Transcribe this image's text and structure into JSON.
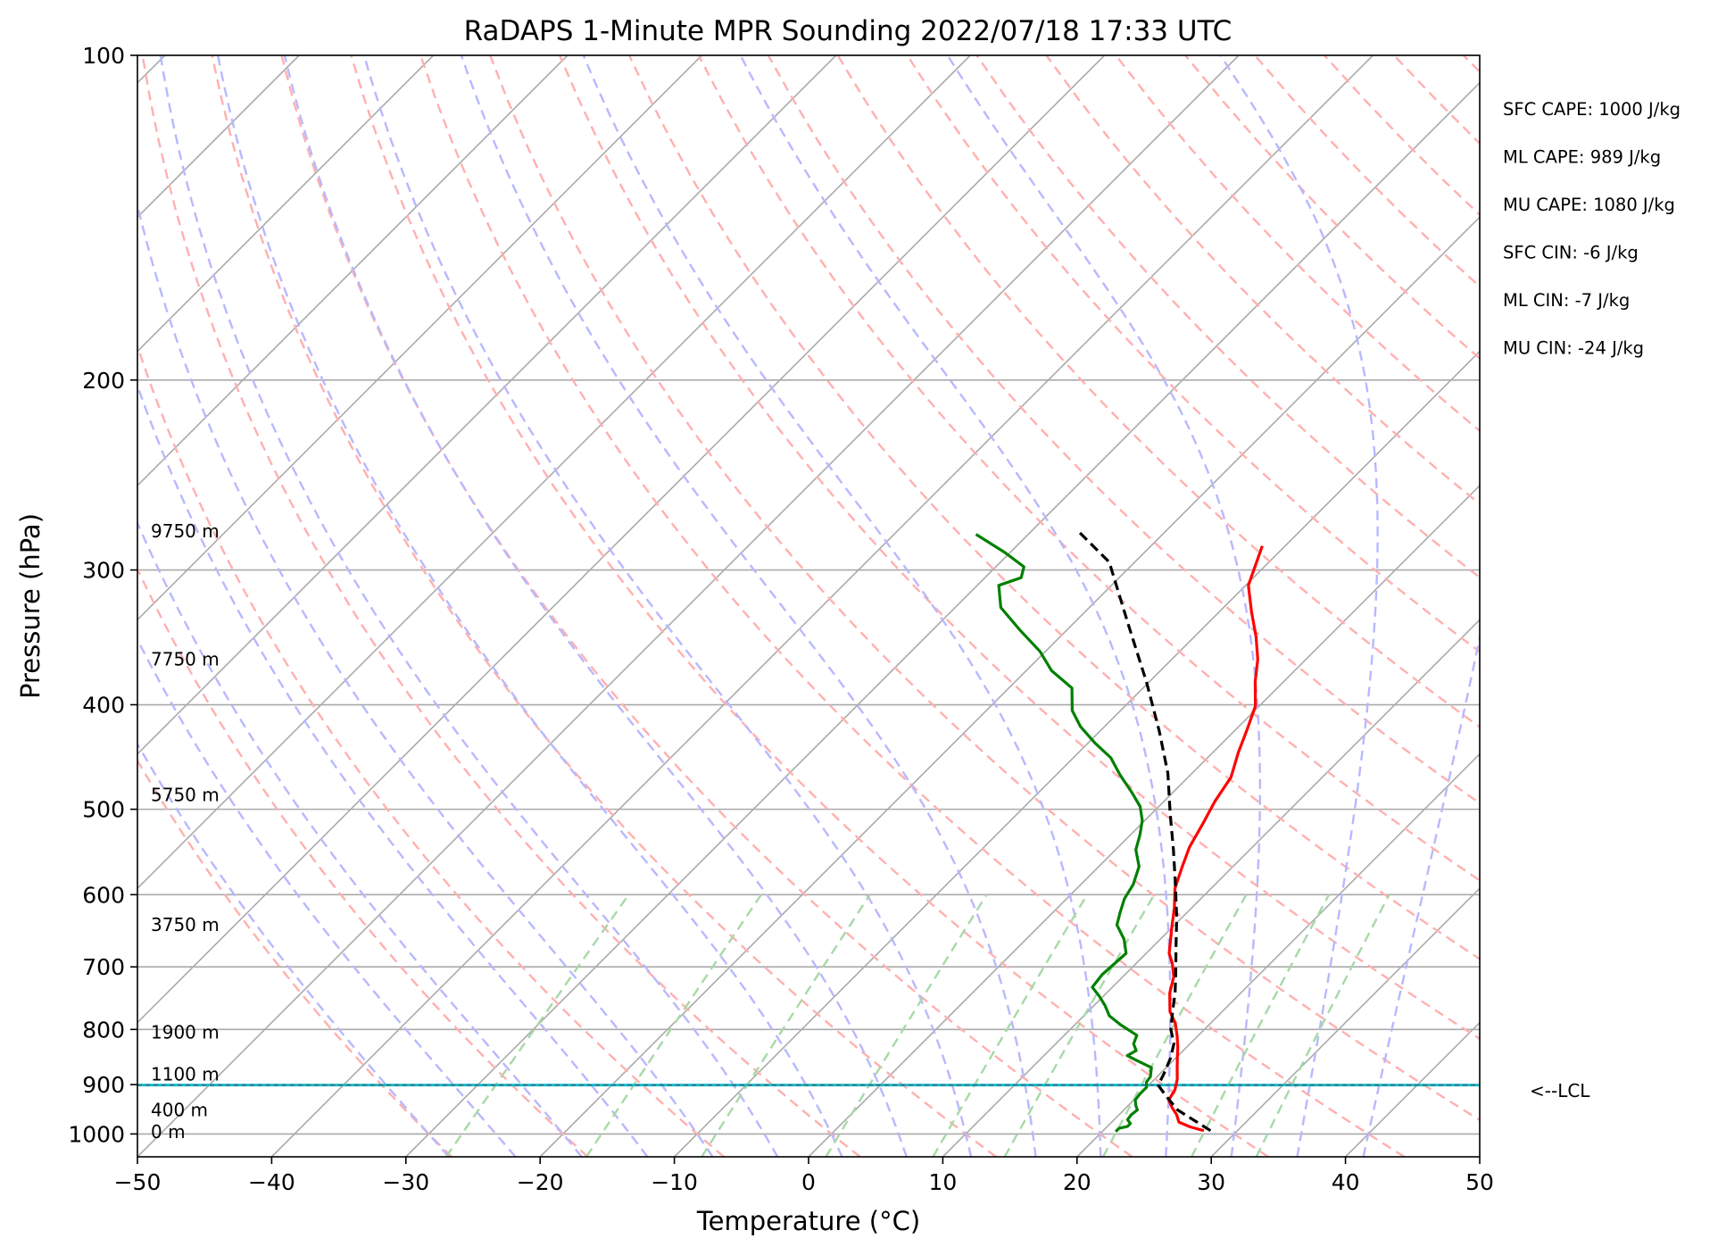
{
  "chart_data": {
    "type": "line",
    "title": "RaDAPS 1-Minute MPR Sounding 2022/07/18 17:33 UTC",
    "xlabel": "Temperature (°C)",
    "ylabel": "Pressure (hPa)",
    "xlim": [
      -50,
      50
    ],
    "ylim": [
      1050,
      100
    ],
    "y_scale": "log",
    "x_ticks": [
      "−50",
      "−40",
      "−30",
      "−20",
      "−10",
      "0",
      "10",
      "20",
      "30",
      "40",
      "50"
    ],
    "x_tick_values": [
      -50,
      -40,
      -30,
      -20,
      -10,
      0,
      10,
      20,
      30,
      40,
      50
    ],
    "y_ticks": [
      "100",
      "200",
      "300",
      "400",
      "500",
      "600",
      "700",
      "800",
      "900",
      "1000"
    ],
    "y_tick_values": [
      100,
      200,
      300,
      400,
      500,
      600,
      700,
      800,
      900,
      1000
    ],
    "grid": true,
    "series": [
      {
        "role": "temperature",
        "color": "#ff0000",
        "points": [
          [
            27.5,
            993
          ],
          [
            26.2,
            985
          ],
          [
            25.0,
            975
          ],
          [
            24.3,
            960
          ],
          [
            23.4,
            945
          ],
          [
            22.6,
            930
          ],
          [
            22.3,
            910
          ],
          [
            21.7,
            890
          ],
          [
            20.9,
            870
          ],
          [
            20.1,
            850
          ],
          [
            19.3,
            830
          ],
          [
            18.4,
            810
          ],
          [
            17.4,
            790
          ],
          [
            16.1,
            770
          ],
          [
            14.7,
            740
          ],
          [
            13.8,
            715
          ],
          [
            12.7,
            695
          ],
          [
            11.7,
            680
          ],
          [
            11.1,
            667
          ],
          [
            9.9,
            642
          ],
          [
            8.7,
            617
          ],
          [
            7.3,
            592
          ],
          [
            6.3,
            567
          ],
          [
            5.3,
            542
          ],
          [
            4.6,
            517
          ],
          [
            3.8,
            492
          ],
          [
            3.2,
            467
          ],
          [
            1.9,
            443
          ],
          [
            0.8,
            421
          ],
          [
            -0.3,
            401
          ],
          [
            -2.1,
            381
          ],
          [
            -3.6,
            363
          ],
          [
            -5.4,
            346
          ],
          [
            -7.6,
            328
          ],
          [
            -9.8,
            310
          ],
          [
            -11.7,
            285
          ]
        ]
      },
      {
        "role": "dewpoint",
        "color": "#008000",
        "points": [
          [
            21.0,
            995
          ],
          [
            21.0,
            988
          ],
          [
            21.5,
            984
          ],
          [
            21.5,
            978
          ],
          [
            21.0,
            970
          ],
          [
            20.9,
            960
          ],
          [
            21.0,
            950
          ],
          [
            20.6,
            942
          ],
          [
            20.1,
            930
          ],
          [
            20.0,
            918
          ],
          [
            20.0,
            905
          ],
          [
            19.6,
            895
          ],
          [
            19.5,
            885
          ],
          [
            18.9,
            868
          ],
          [
            17.3,
            855
          ],
          [
            16.2,
            846
          ],
          [
            16.5,
            837
          ],
          [
            15.8,
            825
          ],
          [
            15.4,
            810
          ],
          [
            13.4,
            792
          ],
          [
            11.9,
            777
          ],
          [
            10.8,
            760
          ],
          [
            9.6,
            744
          ],
          [
            8.5,
            731
          ],
          [
            8.3,
            712
          ],
          [
            8.4,
            695
          ],
          [
            8.5,
            680
          ],
          [
            7.3,
            660
          ],
          [
            5.7,
            640
          ],
          [
            5.0,
            623
          ],
          [
            4.3,
            605
          ],
          [
            3.9,
            587
          ],
          [
            3.0,
            565
          ],
          [
            1.5,
            545
          ],
          [
            0.7,
            528
          ],
          [
            -0.2,
            512
          ],
          [
            -1.4,
            497
          ],
          [
            -3.1,
            482
          ],
          [
            -5.2,
            465
          ],
          [
            -7.2,
            448
          ],
          [
            -9.5,
            434
          ],
          [
            -11.8,
            419
          ],
          [
            -13.6,
            405
          ],
          [
            -15.3,
            386
          ],
          [
            -18.1,
            372
          ],
          [
            -20.4,
            357
          ],
          [
            -23.5,
            341
          ],
          [
            -26.6,
            325
          ],
          [
            -28.4,
            310
          ],
          [
            -27.3,
            305
          ],
          [
            -27.9,
            298
          ],
          [
            -30.4,
            289
          ],
          [
            -33.9,
            278
          ]
        ]
      },
      {
        "role": "parcel",
        "color": "#000000",
        "style": "dashed",
        "points": [
          [
            28.0,
            993
          ],
          [
            24.0,
            950
          ],
          [
            22.3,
            925
          ],
          [
            20.7,
            901
          ],
          [
            20.3,
            880
          ],
          [
            19.6,
            850
          ],
          [
            18.8,
            825
          ],
          [
            17.5,
            800
          ],
          [
            16.3,
            770
          ],
          [
            15.1,
            740
          ],
          [
            13.7,
            710
          ],
          [
            11.7,
            670
          ],
          [
            9.6,
            630
          ],
          [
            6.6,
            580
          ],
          [
            4.3,
            545
          ],
          [
            1.4,
            505
          ],
          [
            -1.8,
            463
          ],
          [
            -5.6,
            423
          ],
          [
            -10.2,
            381
          ],
          [
            -15.7,
            338
          ],
          [
            -21.9,
            295
          ],
          [
            -26.3,
            277
          ]
        ]
      }
    ],
    "lcl_pressure": 901,
    "heights": [
      {
        "label": "0 m",
        "pressure": 995
      },
      {
        "label": "400 m",
        "pressure": 950
      },
      {
        "label": "1100 m",
        "pressure": 880
      },
      {
        "label": "1900 m",
        "pressure": 805
      },
      {
        "label": "3750 m",
        "pressure": 640
      },
      {
        "label": "5750 m",
        "pressure": 485
      },
      {
        "label": "7750 m",
        "pressure": 363
      },
      {
        "label": "9750 m",
        "pressure": 276
      }
    ],
    "background_lines": {
      "isotherm_color": "#aaaaaa",
      "dry_adiabat_color": "#ffb0b0",
      "moist_adiabat_color": "#b8b8ff",
      "mixing_ratio_color": "#a8d8a8",
      "lcl_color": "#17becf"
    }
  },
  "stats": [
    "SFC CAPE: 1000 J/kg",
    "ML CAPE: 989 J/kg",
    "MU CAPE: 1080 J/kg",
    "SFC CIN: -6 J/kg",
    "ML CIN: -7 J/kg",
    "MU CIN: -24 J/kg"
  ],
  "lcl_label": "<--LCL"
}
